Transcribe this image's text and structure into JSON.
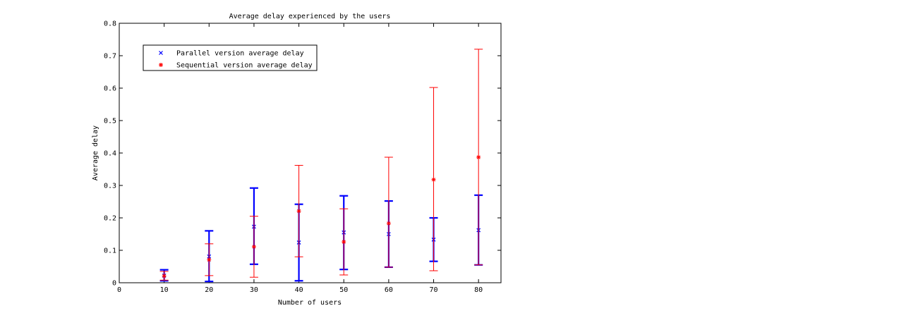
{
  "chart_data": {
    "type": "errorbar",
    "title": "Average delay experienced by the users",
    "xlabel": "Number of users",
    "ylabel": "Average delay",
    "xlim": [
      0,
      85
    ],
    "ylim": [
      0,
      0.8
    ],
    "xticks": [
      0,
      10,
      20,
      30,
      40,
      50,
      60,
      70,
      80
    ],
    "yticks": [
      0,
      0.1,
      0.2,
      0.3,
      0.4,
      0.5,
      0.6,
      0.7,
      0.8
    ],
    "xtick_labels": [
      "0",
      "10",
      "20",
      "30",
      "40",
      "50",
      "60",
      "70",
      "80"
    ],
    "ytick_labels": [
      "0",
      "0.1",
      "0.2",
      "0.3",
      "0.4",
      "0.5",
      "0.6",
      "0.7",
      "0.8"
    ],
    "grid": false,
    "legend_position": "top-left",
    "series": [
      {
        "name": "Parallel version average delay",
        "marker": "x",
        "color": "#0000ff",
        "x": [
          10,
          20,
          30,
          40,
          50,
          60,
          70,
          80
        ],
        "y": [
          0.022,
          0.081,
          0.173,
          0.124,
          0.155,
          0.15,
          0.133,
          0.162
        ],
        "lower": [
          0.006,
          0.004,
          0.057,
          0.006,
          0.041,
          0.048,
          0.066,
          0.055
        ],
        "upper": [
          0.04,
          0.16,
          0.292,
          0.242,
          0.268,
          0.252,
          0.2,
          0.27
        ]
      },
      {
        "name": "Sequential version average delay",
        "marker": "*",
        "color": "#ff0000",
        "x": [
          10,
          20,
          30,
          40,
          50,
          60,
          70,
          80
        ],
        "y": [
          0.021,
          0.071,
          0.111,
          0.221,
          0.126,
          0.183,
          0.318,
          0.387
        ],
        "lower": [
          0.008,
          0.022,
          0.017,
          0.08,
          0.024,
          0.048,
          0.037,
          0.055
        ],
        "upper": [
          0.035,
          0.12,
          0.205,
          0.362,
          0.228,
          0.387,
          0.602,
          0.72
        ]
      }
    ]
  }
}
